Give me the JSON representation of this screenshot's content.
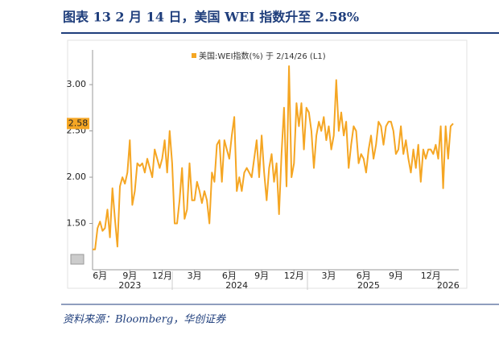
{
  "header": {
    "title": "图表 13  2 月 14 日，美国 WEI 指数升至 2.58%"
  },
  "chart_data": {
    "type": "line",
    "series": [
      {
        "name": "美国:WEI指数(%) 于 2/14/26 (L1)",
        "color": "#f5a623",
        "values": [
          1.22,
          1.22,
          1.45,
          1.52,
          1.42,
          1.45,
          1.65,
          1.35,
          1.88,
          1.55,
          1.25,
          1.9,
          2.0,
          1.93,
          2.05,
          2.4,
          1.7,
          1.85,
          2.15,
          2.12,
          2.15,
          2.05,
          2.2,
          2.1,
          2.0,
          2.3,
          2.2,
          2.1,
          2.2,
          2.4,
          2.05,
          2.5,
          2.15,
          1.5,
          1.5,
          1.75,
          2.1,
          1.55,
          1.65,
          2.15,
          1.75,
          1.75,
          1.95,
          1.85,
          1.72,
          1.85,
          1.75,
          1.5,
          2.05,
          1.95,
          2.35,
          2.4,
          1.95,
          2.4,
          2.3,
          2.2,
          2.45,
          2.65,
          1.85,
          2.0,
          1.85,
          2.05,
          2.1,
          2.05,
          2.0,
          2.2,
          2.4,
          2.0,
          2.45,
          2.05,
          1.75,
          2.1,
          2.25,
          1.95,
          2.15,
          1.6,
          2.25,
          2.75,
          1.9,
          3.2,
          2.0,
          2.15,
          2.8,
          2.55,
          2.8,
          2.3,
          2.75,
          2.7,
          2.5,
          2.1,
          2.45,
          2.6,
          2.5,
          2.65,
          2.4,
          2.55,
          2.3,
          2.45,
          3.05,
          2.5,
          2.7,
          2.45,
          2.6,
          2.1,
          2.35,
          2.55,
          2.5,
          2.15,
          2.25,
          2.2,
          2.05,
          2.3,
          2.45,
          2.2,
          2.35,
          2.6,
          2.55,
          2.35,
          2.55,
          2.6,
          2.6,
          2.5,
          2.25,
          2.3,
          2.55,
          2.25,
          2.4,
          2.2,
          2.05,
          2.3,
          2.1,
          2.35,
          1.95,
          2.3,
          2.2,
          2.3,
          2.3,
          2.25,
          2.35,
          2.2,
          2.55,
          1.88,
          2.55,
          2.2,
          2.55,
          2.58
        ]
      }
    ],
    "xlim": [
      0,
      145
    ],
    "xticks": [
      {
        "value": 3,
        "label": "6月"
      },
      {
        "value": 15,
        "label": "9月"
      },
      {
        "value": 28,
        "label": "12月"
      },
      {
        "value": 41,
        "label": "3月"
      },
      {
        "value": 55,
        "label": "6月"
      },
      {
        "value": 68,
        "label": "9月"
      },
      {
        "value": 81,
        "label": "12月"
      },
      {
        "value": 95,
        "label": "3月"
      },
      {
        "value": 109,
        "label": "6月"
      },
      {
        "value": 122,
        "label": "9月"
      },
      {
        "value": 136,
        "label": "12月"
      }
    ],
    "year_ticks": [
      {
        "value": 15,
        "label": "2023"
      },
      {
        "value": 58,
        "label": "2024"
      },
      {
        "value": 111,
        "label": "2025"
      },
      {
        "value": 143,
        "label": "2026"
      }
    ],
    "ylim": [
      1.0,
      3.375
    ],
    "yticks": [
      {
        "value": 1.5,
        "label": "1.50"
      },
      {
        "value": 2.0,
        "label": "2.00"
      },
      {
        "value": 2.5,
        "label": "2.50"
      },
      {
        "value": 3.0,
        "label": "3.00"
      }
    ],
    "grid": false
  },
  "footer": {
    "source": "资料来源：Bloomberg，华创证券"
  }
}
